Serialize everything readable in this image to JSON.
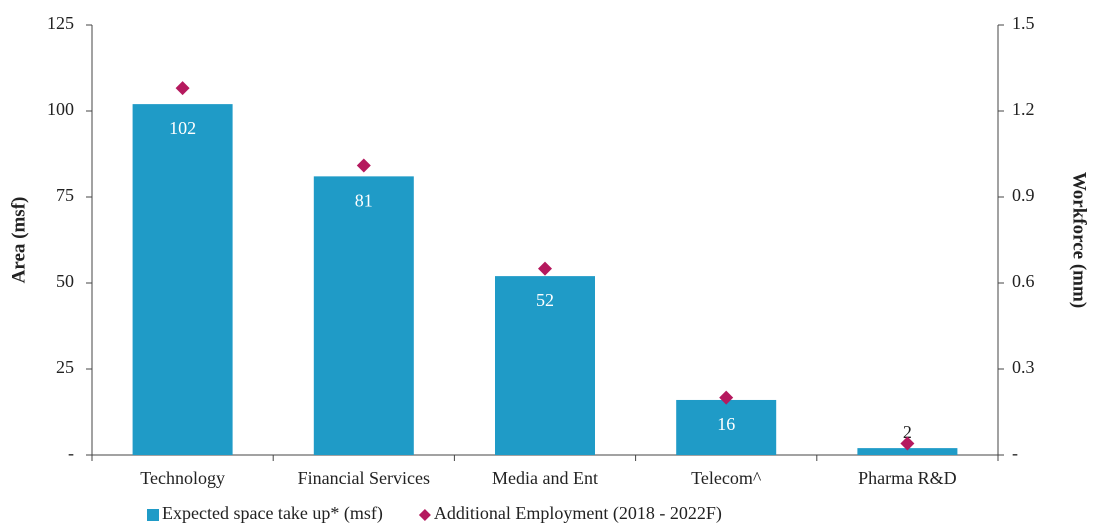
{
  "chart_data": {
    "type": "bar",
    "categories": [
      "Technology",
      "Financial Services",
      "Media and Ent",
      "Telecom^",
      "Pharma R&D"
    ],
    "series": [
      {
        "name": "Expected space take up* (msf)",
        "type": "bar",
        "axis": "y",
        "color": "#1f9bc7",
        "values": [
          102,
          81,
          52,
          16,
          2
        ]
      },
      {
        "name": "Additional Employment (2018 - 2022F)",
        "type": "scatter",
        "marker": "diamond",
        "axis": "y2",
        "color": "#b5195e",
        "values": [
          1.28,
          1.01,
          0.65,
          0.2,
          0.04
        ]
      }
    ],
    "ylabel": "Area (msf)",
    "y2label": "Workforce (mm)",
    "ylim": [
      0,
      125
    ],
    "yticks": [
      {
        "value": 0,
        "label": "-"
      },
      25,
      50,
      75,
      100,
      125
    ],
    "y2lim": [
      0,
      1.5
    ],
    "y2ticks": [
      {
        "value": 0,
        "label": "-"
      },
      0.3,
      0.6,
      0.9,
      1.2,
      1.5
    ],
    "grid": false,
    "legend": "bottom"
  }
}
